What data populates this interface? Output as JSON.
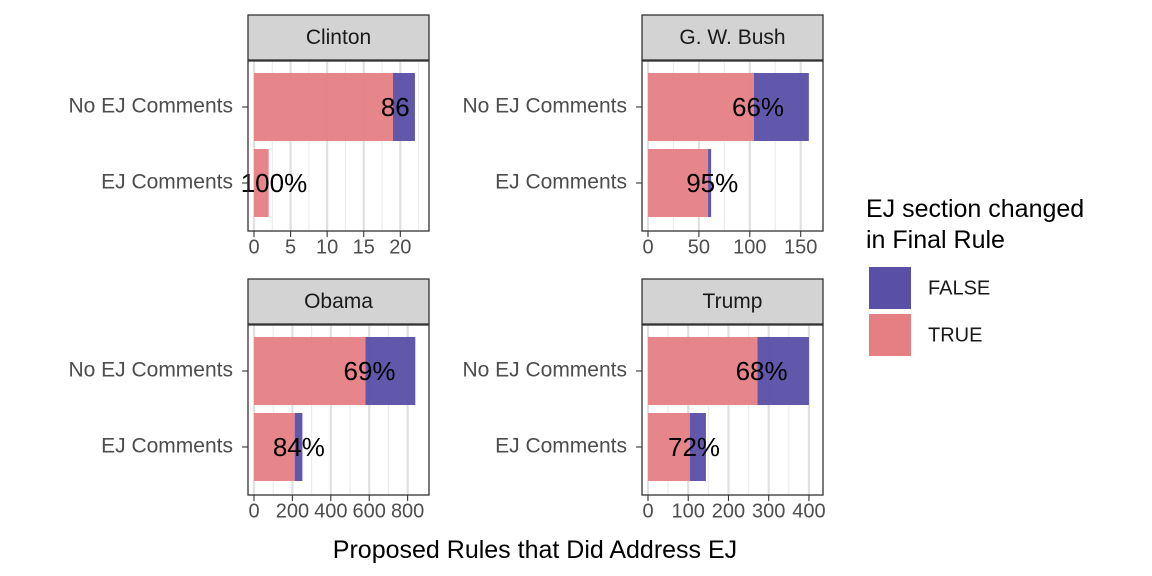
{
  "chart_data": {
    "type": "bar",
    "orientation": "horizontal",
    "stacked": true,
    "layout": "facet_wrap 2x2, independent x scales",
    "xlabel": "Proposed Rules that Did Address EJ",
    "ylabel": "",
    "categories": [
      "No EJ Comments",
      "EJ Comments"
    ],
    "legend": {
      "title_lines": [
        "EJ section changed",
        "in Final Rule"
      ],
      "position": "right",
      "items": [
        {
          "label": "FALSE",
          "color": "#5a4fa6"
        },
        {
          "label": "TRUE",
          "color": "#e57f84"
        }
      ]
    },
    "facets": [
      {
        "title": "Clinton",
        "xlim": [
          0,
          23.1
        ],
        "ticks": [
          0,
          5,
          10,
          15,
          20
        ],
        "tick_labels": [
          "0",
          "5",
          "10",
          "15",
          "20"
        ],
        "series": [
          {
            "name": "TRUE",
            "values": [
              19,
              2
            ]
          },
          {
            "name": "FALSE",
            "values": [
              3,
              0
            ]
          }
        ],
        "labels": [
          "86",
          "100%"
        ]
      },
      {
        "title": "G. W. Bush",
        "xlim": [
          0,
          166
        ],
        "ticks": [
          0,
          50,
          100,
          150
        ],
        "tick_labels": [
          "0",
          "50",
          "100",
          "150"
        ],
        "series": [
          {
            "name": "TRUE",
            "values": [
              104,
              59
            ]
          },
          {
            "name": "FALSE",
            "values": [
              54,
              3
            ]
          }
        ],
        "labels": [
          "66%",
          "95%"
        ]
      },
      {
        "title": "Obama",
        "xlim": [
          0,
          880
        ],
        "ticks": [
          0,
          200,
          400,
          600,
          800
        ],
        "tick_labels": [
          "0",
          "200",
          "400",
          "600",
          "800"
        ],
        "series": [
          {
            "name": "TRUE",
            "values": [
              580,
              212
            ]
          },
          {
            "name": "FALSE",
            "values": [
              260,
              40
            ]
          }
        ],
        "labels": [
          "69%",
          "84%"
        ]
      },
      {
        "title": "Trump",
        "xlim": [
          0,
          420
        ],
        "ticks": [
          0,
          100,
          200,
          300,
          400
        ],
        "tick_labels": [
          "0",
          "100",
          "200",
          "300",
          "400"
        ],
        "series": [
          {
            "name": "TRUE",
            "values": [
              272,
              104
            ]
          },
          {
            "name": "FALSE",
            "values": [
              128,
              40
            ]
          }
        ],
        "labels": [
          "68%",
          "72%"
        ]
      }
    ]
  }
}
